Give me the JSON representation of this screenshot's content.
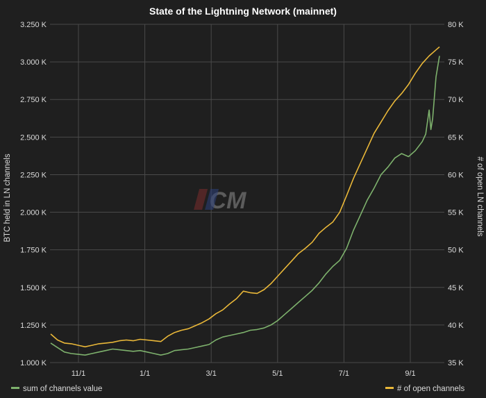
{
  "chart_data": {
    "type": "line",
    "title": "State of the Lightning Network (mainnet)",
    "ylabel_left": "BTC held in LN channels",
    "ylabel_right": "# of open LN channels",
    "x_ticks": [
      "11/1",
      "1/1",
      "3/1",
      "5/1",
      "7/1",
      "9/1"
    ],
    "x_range_months": [
      0,
      11.3
    ],
    "x_tick_positions_months": [
      1.5,
      3.5,
      5.5,
      7.5,
      9.5,
      11.5
    ],
    "y_left": {
      "min": 1000,
      "max": 3250,
      "ticks": [
        "1.000 K",
        "1.250 K",
        "1.500 K",
        "1.750 K",
        "2.000 K",
        "2.250 K",
        "2.500 K",
        "2.750 K",
        "3.000 K",
        "3.250 K"
      ],
      "tick_values": [
        1000,
        1250,
        1500,
        1750,
        2000,
        2250,
        2500,
        2750,
        3000,
        3250
      ]
    },
    "y_right": {
      "min": 35,
      "max": 80,
      "ticks": [
        "35 K",
        "40 K",
        "45 K",
        "50 K",
        "55 K",
        "60 K",
        "65 K",
        "70 K",
        "75 K",
        "80 K"
      ],
      "tick_values": [
        35,
        40,
        45,
        50,
        55,
        60,
        65,
        70,
        75,
        80
      ]
    },
    "grid": true,
    "legend_placement": "bottom",
    "series": [
      {
        "name": "sum of channels value",
        "axis": "left",
        "color": "#7eb26d",
        "x": [
          0,
          0.2,
          0.4,
          0.6,
          0.8,
          1.0,
          1.2,
          1.4,
          1.6,
          1.8,
          2.0,
          2.2,
          2.4,
          2.6,
          2.8,
          3.0,
          3.2,
          3.4,
          3.6,
          3.8,
          4.0,
          4.2,
          4.4,
          4.6,
          4.8,
          5.0,
          5.2,
          5.4,
          5.6,
          5.8,
          6.0,
          6.2,
          6.4,
          6.6,
          6.8,
          7.0,
          7.2,
          7.4,
          7.6,
          7.8,
          8.0,
          8.2,
          8.4,
          8.6,
          8.8,
          9.0,
          9.2,
          9.4,
          9.6,
          9.8,
          10.0,
          10.2,
          10.4,
          10.6,
          10.8,
          10.9,
          11.0,
          11.05,
          11.1,
          11.2,
          11.3
        ],
        "values": [
          1130,
          1100,
          1070,
          1060,
          1055,
          1050,
          1060,
          1070,
          1080,
          1090,
          1085,
          1080,
          1075,
          1080,
          1070,
          1060,
          1050,
          1060,
          1080,
          1085,
          1090,
          1100,
          1110,
          1120,
          1150,
          1170,
          1180,
          1190,
          1200,
          1215,
          1220,
          1230,
          1250,
          1280,
          1320,
          1360,
          1400,
          1440,
          1480,
          1530,
          1590,
          1640,
          1680,
          1760,
          1880,
          1980,
          2080,
          2160,
          2250,
          2300,
          2360,
          2390,
          2370,
          2410,
          2470,
          2520,
          2680,
          2550,
          2620,
          2900,
          3040
        ]
      },
      {
        "name": "# of open channels",
        "axis": "right",
        "color": "#eab839",
        "x": [
          0,
          0.2,
          0.4,
          0.6,
          0.8,
          1.0,
          1.2,
          1.4,
          1.6,
          1.8,
          2.0,
          2.2,
          2.4,
          2.6,
          2.8,
          3.0,
          3.2,
          3.4,
          3.6,
          3.8,
          4.0,
          4.2,
          4.4,
          4.6,
          4.8,
          5.0,
          5.2,
          5.4,
          5.6,
          5.8,
          6.0,
          6.2,
          6.4,
          6.6,
          6.8,
          7.0,
          7.2,
          7.4,
          7.6,
          7.8,
          8.0,
          8.2,
          8.4,
          8.6,
          8.8,
          9.0,
          9.2,
          9.4,
          9.6,
          9.8,
          10.0,
          10.2,
          10.4,
          10.6,
          10.8,
          11.0,
          11.2,
          11.3
        ],
        "values": [
          38.8,
          38.0,
          37.6,
          37.5,
          37.3,
          37.1,
          37.3,
          37.5,
          37.6,
          37.7,
          37.9,
          38.0,
          37.9,
          38.1,
          38.0,
          37.9,
          37.8,
          38.5,
          39.0,
          39.3,
          39.5,
          39.9,
          40.3,
          40.8,
          41.5,
          42.0,
          42.8,
          43.5,
          44.5,
          44.3,
          44.2,
          44.7,
          45.5,
          46.5,
          47.5,
          48.5,
          49.5,
          50.2,
          51.0,
          52.2,
          53.0,
          53.7,
          55.0,
          57.2,
          59.5,
          61.5,
          63.5,
          65.5,
          67.0,
          68.5,
          69.8,
          70.8,
          72.0,
          73.5,
          74.8,
          75.8,
          76.6,
          77.0
        ]
      }
    ],
    "watermark": "CM"
  }
}
